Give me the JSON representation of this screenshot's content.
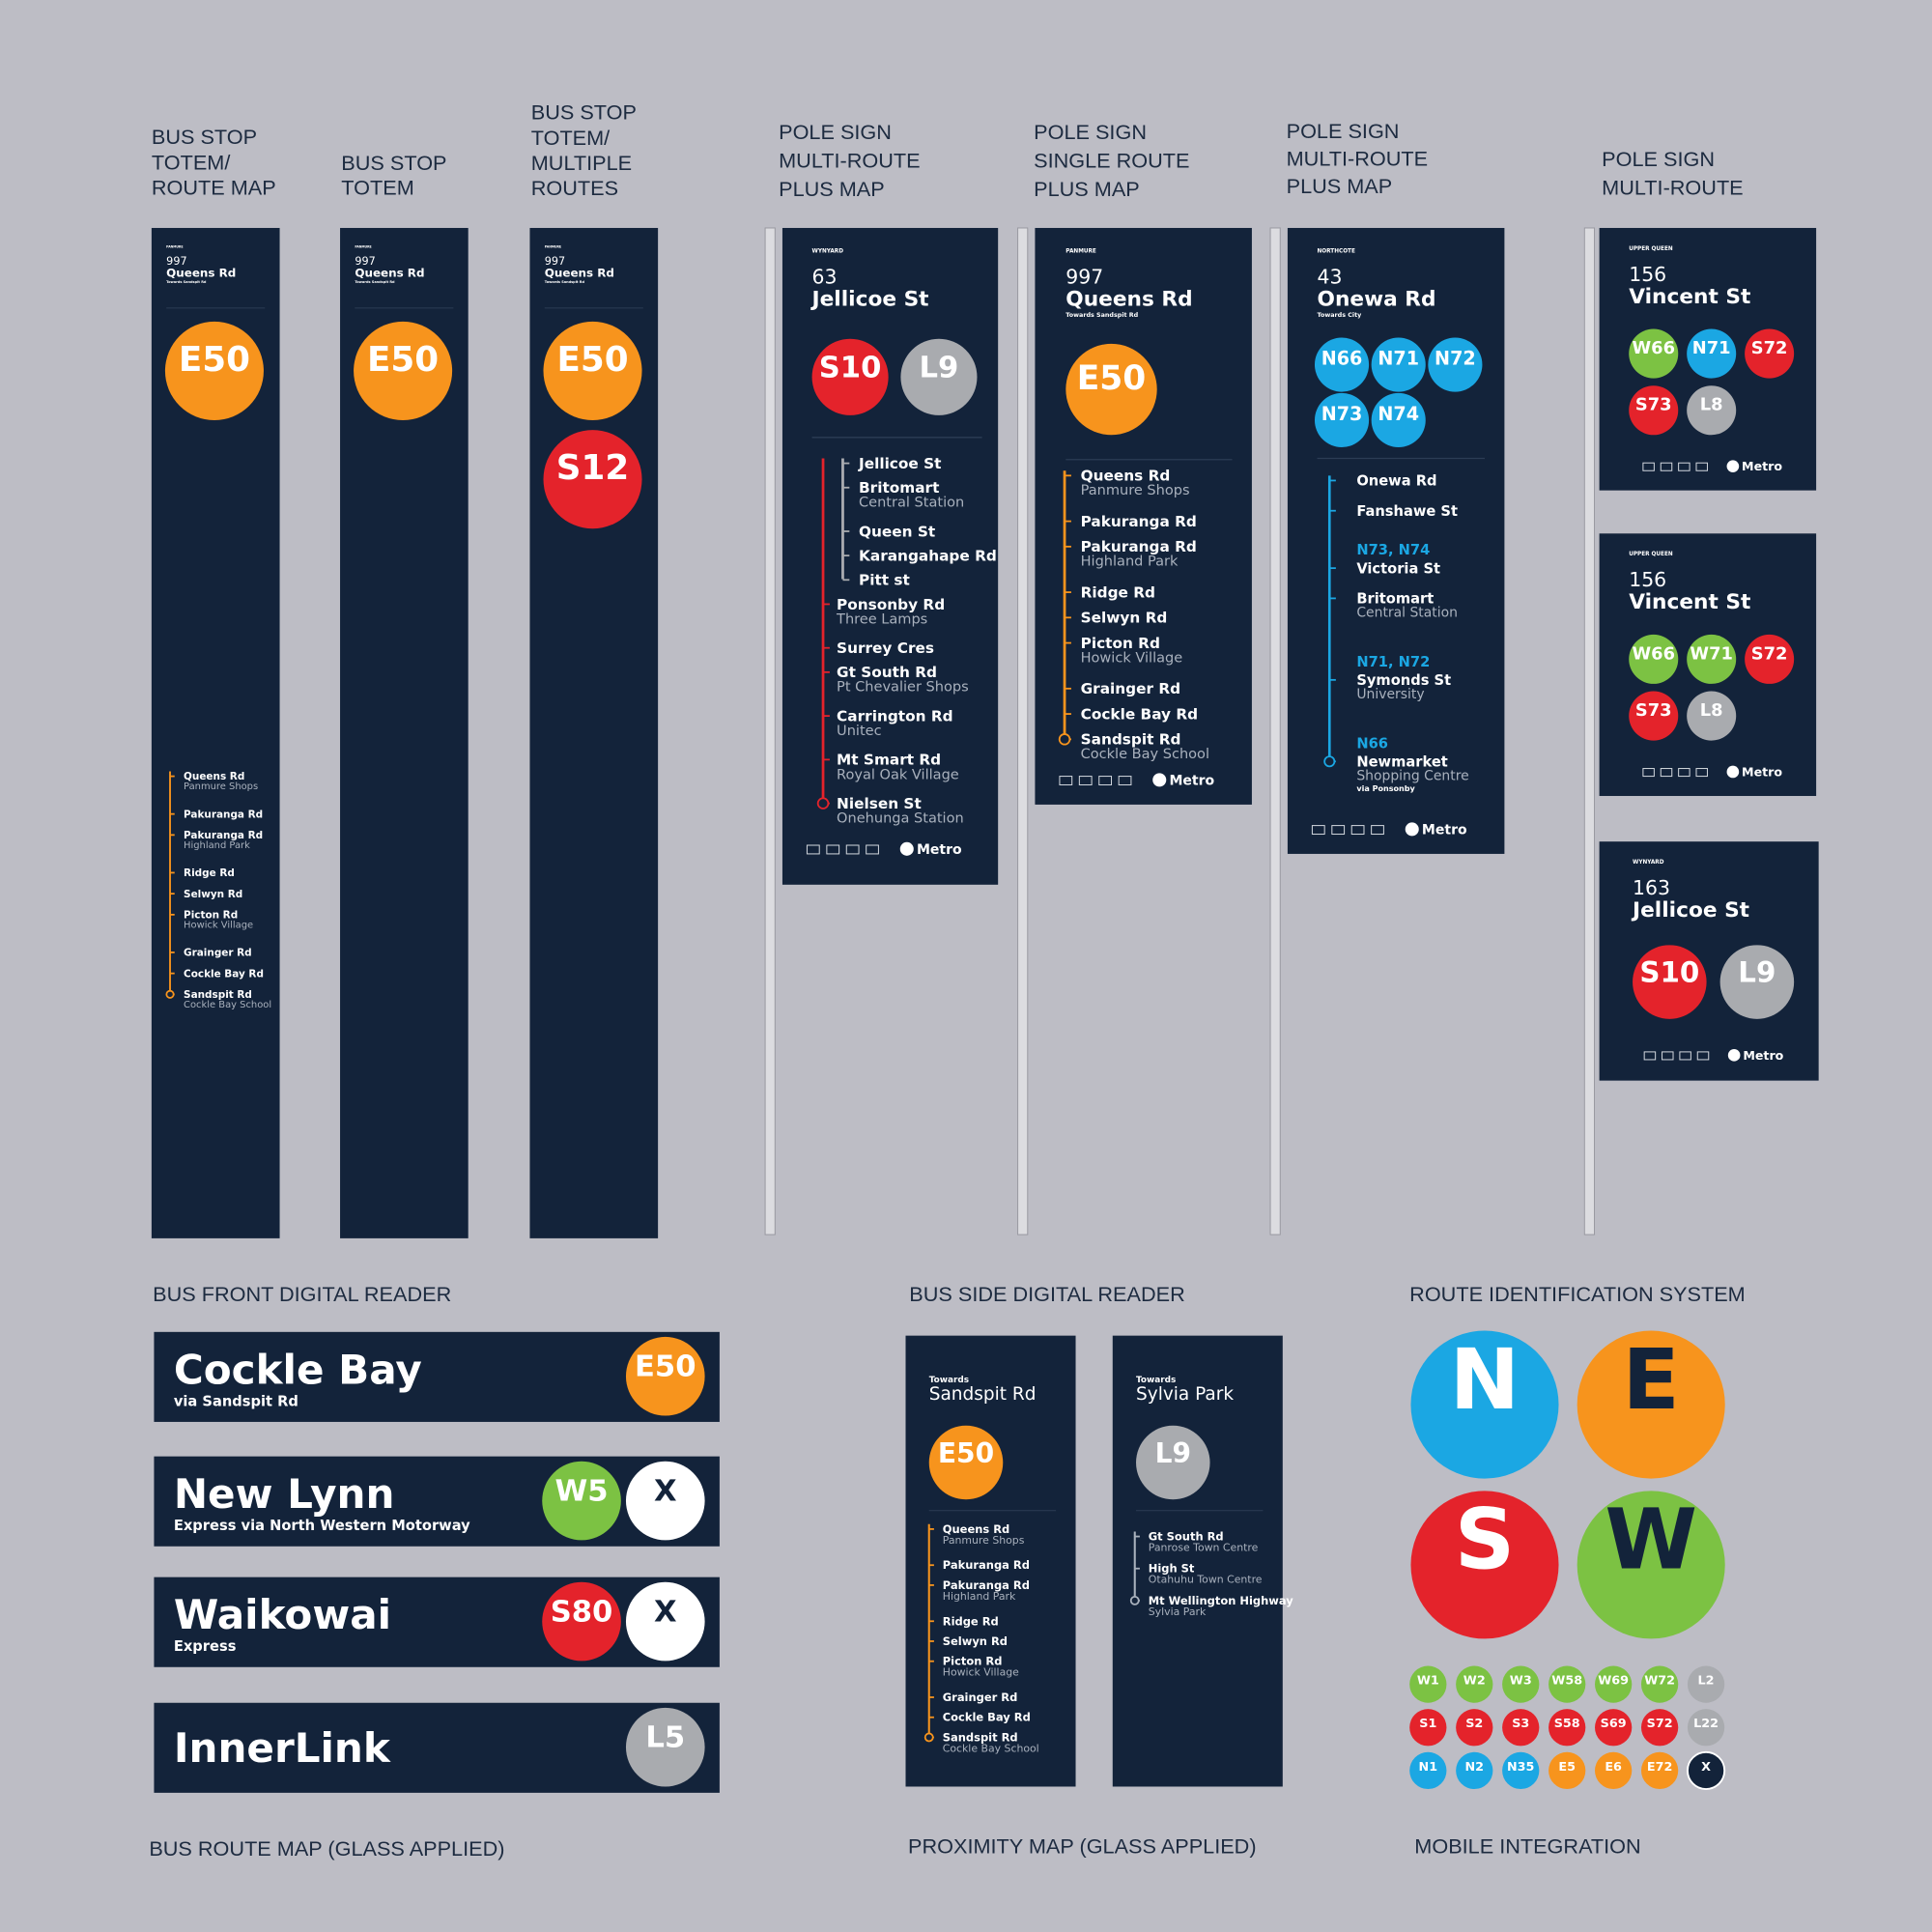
{
  "headings": [
    [
      "BUS STOP",
      "TOTEM/",
      "ROUTE MAP"
    ],
    [
      "BUS STOP",
      "TOTEM"
    ],
    [
      "BUS STOP",
      "TOTEM/",
      "MULTIPLE",
      "ROUTES"
    ],
    [
      "POLE SIGN",
      "MULTI-ROUTE",
      "PLUS MAP"
    ],
    [
      "POLE SIGN",
      "SINGLE ROUTE",
      "PLUS MAP"
    ],
    [
      "POLE SIGN",
      "MULTI-ROUTE",
      "PLUS MAP"
    ],
    [
      "POLE SIGN",
      "MULTI-ROUTE"
    ]
  ],
  "section_labels": [
    "BUS FRONT  DIGITAL READER",
    "BUS SIDE DIGITAL READER",
    "ROUTE IDENTIFICATION SYSTEM",
    "BUS ROUTE MAP (GLASS APPLIED)",
    "PROXIMITY MAP (GLASS APPLIED)",
    "MOBILE INTEGRATION"
  ],
  "route_colors": {
    "N": "#1ba7e3",
    "E": "#f7941d",
    "S": "#e4232b",
    "W": "#7cc243",
    "L": "#a9abaf",
    "X": "#ffffff"
  },
  "brand": "Metro",
  "totems": [
    {
      "area": "PANMURE",
      "number": "997",
      "name": "Queens Rd",
      "towards": "Towards Sandspit Rd",
      "routes": [
        "E50"
      ],
      "stops": [
        {
          "name": "Queens Rd",
          "sub": "Panmure Shops"
        },
        {
          "name": "Pakuranga Rd"
        },
        {
          "name": "Pakuranga Rd",
          "sub": "Highland Park"
        },
        {
          "name": "Ridge Rd"
        },
        {
          "name": "Selwyn Rd"
        },
        {
          "name": "Picton Rd",
          "sub": "Howick Village"
        },
        {
          "name": "Grainger Rd"
        },
        {
          "name": "Cockle Bay Rd"
        },
        {
          "name": "Sandspit Rd",
          "sub": "Cockle Bay School"
        }
      ]
    },
    {
      "area": "PANMURE",
      "number": "997",
      "name": "Queens Rd",
      "towards": "Towards Sandspit Rd",
      "routes": [
        "E50"
      ]
    },
    {
      "area": "PANMURE",
      "number": "997",
      "name": "Queens Rd",
      "towards": "Towards Sandspit Rd",
      "routes": [
        "E50",
        "S12"
      ]
    }
  ],
  "pole_signs": [
    {
      "area": "WYNYARD",
      "number": "63",
      "name": "Jellicoe St",
      "routes": [
        "S10",
        "L9"
      ],
      "stops": [
        {
          "name": "Jellicoe St"
        },
        {
          "name": "Britomart",
          "sub": "Central Station"
        },
        {
          "name": "Queen St"
        },
        {
          "name": "Karangahape Rd"
        },
        {
          "name": "Pitt st"
        },
        {
          "name": "Ponsonby Rd",
          "sub": "Three Lamps"
        },
        {
          "name": "Surrey Cres"
        },
        {
          "name": "Gt South Rd",
          "sub": "Pt Chevalier Shops"
        },
        {
          "name": "Carrington Rd",
          "sub": "Unitec"
        },
        {
          "name": "Mt Smart Rd",
          "sub": "Royal Oak Village"
        },
        {
          "name": "Nielsen St",
          "sub": "Onehunga Station"
        }
      ]
    },
    {
      "area": "PANMURE",
      "number": "997",
      "name": "Queens Rd",
      "towards": "Towards Sandspit Rd",
      "routes": [
        "E50"
      ],
      "stops": [
        {
          "name": "Queens Rd",
          "sub": "Panmure Shops"
        },
        {
          "name": "Pakuranga Rd"
        },
        {
          "name": "Pakuranga Rd",
          "sub": "Highland Park"
        },
        {
          "name": "Ridge Rd"
        },
        {
          "name": "Selwyn Rd"
        },
        {
          "name": "Picton Rd",
          "sub": "Howick Village"
        },
        {
          "name": "Grainger Rd"
        },
        {
          "name": "Cockle Bay Rd"
        },
        {
          "name": "Sandspit Rd",
          "sub": "Cockle Bay School"
        }
      ]
    },
    {
      "area": "NORTHCOTE",
      "number": "43",
      "name": "Onewa Rd",
      "towards": "Towards City",
      "routes": [
        "N66",
        "N71",
        "N72",
        "N73",
        "N74"
      ],
      "stops": [
        {
          "name": "Onewa Rd"
        },
        {
          "name": "Fanshawe St"
        },
        {
          "routes": "N73, N74",
          "name": "Victoria St"
        },
        {
          "name": "Britomart",
          "sub": "Central Station"
        },
        {
          "routes": "N71, N72",
          "name": "Symonds St",
          "sub": "University"
        },
        {
          "routes": "N66",
          "name": "Newmarket",
          "sub": "Shopping Centre",
          "note": "via Ponsonby"
        }
      ]
    },
    {
      "area": "UPPER QUEEN",
      "number": "156",
      "name": "Vincent St",
      "routes": [
        "W66",
        "N71",
        "S72",
        "S73",
        "L8"
      ]
    },
    {
      "area": "UPPER QUEEN",
      "number": "156",
      "name": "Vincent St",
      "routes": [
        "W66",
        "W71",
        "S72",
        "S73",
        "L8"
      ]
    },
    {
      "area": "WYNYARD",
      "number": "163",
      "name": "Jellicoe St",
      "routes": [
        "S10",
        "L9"
      ]
    }
  ],
  "bus_front": [
    {
      "destination": "Cockle Bay",
      "via": "via Sandspit Rd",
      "routes": [
        "E50"
      ]
    },
    {
      "destination": "New Lynn",
      "via": "Express via North Western Motorway",
      "routes": [
        "W5",
        "X"
      ]
    },
    {
      "destination": "Waikowai",
      "via": "Express",
      "routes": [
        "S80",
        "X"
      ]
    },
    {
      "destination": "InnerLink",
      "routes": [
        "L5"
      ]
    }
  ],
  "bus_side": [
    {
      "towards": "Towards",
      "destination": "Sandspit Rd",
      "route": "E50",
      "stops": [
        {
          "name": "Queens Rd",
          "sub": "Panmure Shops"
        },
        {
          "name": "Pakuranga Rd"
        },
        {
          "name": "Pakuranga Rd",
          "sub": "Highland Park"
        },
        {
          "name": "Ridge Rd"
        },
        {
          "name": "Selwyn Rd"
        },
        {
          "name": "Picton Rd",
          "sub": "Howick Village"
        },
        {
          "name": "Grainger Rd"
        },
        {
          "name": "Cockle Bay Rd"
        },
        {
          "name": "Sandspit Rd",
          "sub": "Cockle Bay School"
        }
      ]
    },
    {
      "towards": "Towards",
      "destination": "Sylvia Park",
      "route": "L9",
      "stops": [
        {
          "name": "Gt South Rd",
          "sub": "Panrose Town Centre"
        },
        {
          "name": "High St",
          "sub": "Otahuhu Town Centre"
        },
        {
          "name": "Mt Wellington Highway",
          "sub": "Sylvia Park"
        }
      ]
    }
  ],
  "route_ids": {
    "main": [
      "N",
      "E",
      "S",
      "W"
    ],
    "main_text_colors": [
      "#ffffff",
      "#13233a",
      "#ffffff",
      "#13233a"
    ],
    "rows": [
      [
        "W1",
        "W2",
        "W3",
        "W58",
        "W69",
        "W72",
        "L2"
      ],
      [
        "S1",
        "S2",
        "S3",
        "S58",
        "S69",
        "S72",
        "L22"
      ],
      [
        "N1",
        "N2",
        "N35",
        "E5",
        "E6",
        "E72",
        "X"
      ]
    ]
  }
}
